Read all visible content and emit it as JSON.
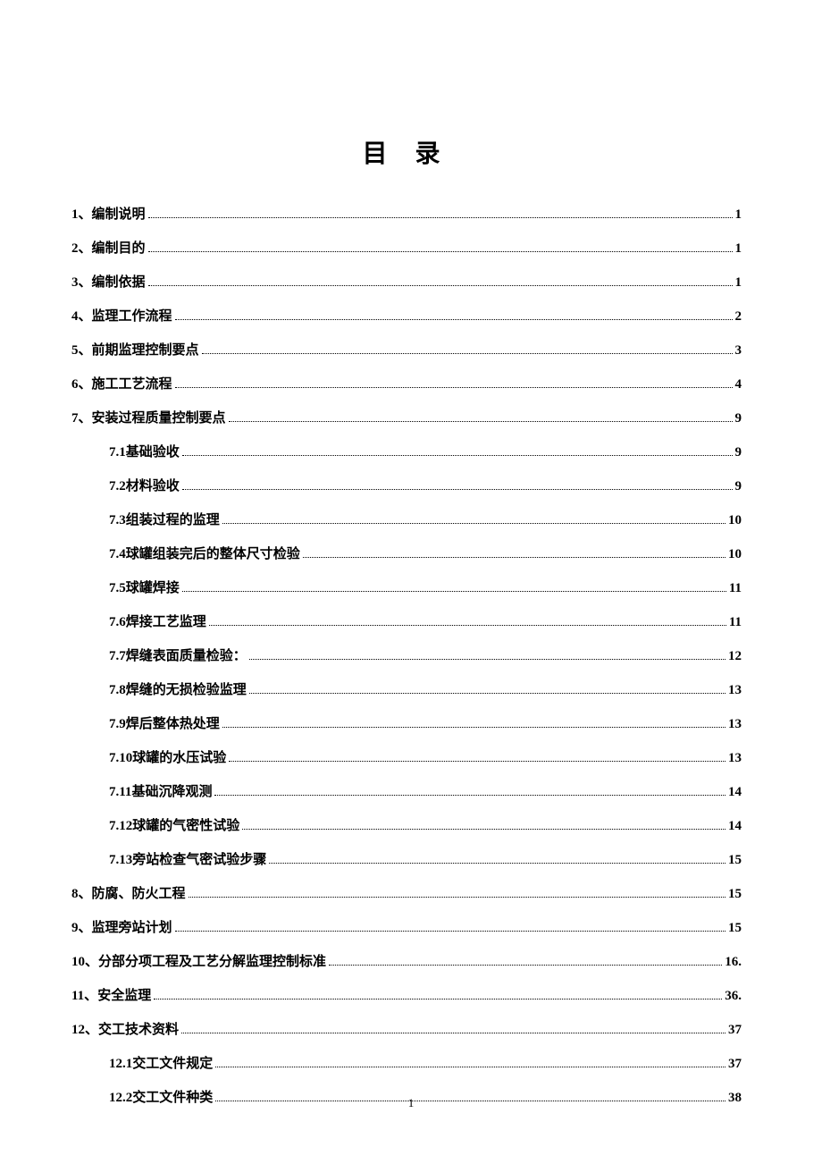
{
  "title": "目 录",
  "entries": [
    {
      "num": "1、",
      "text": "编制说明",
      "page": "1",
      "sub": false
    },
    {
      "num": "2、",
      "text": "编制目的",
      "page": "1",
      "sub": false
    },
    {
      "num": "3、",
      "text": "编制依据",
      "page": "1",
      "sub": false
    },
    {
      "num": "4、",
      "text": "监理工作流程",
      "page": "2",
      "sub": false
    },
    {
      "num": "5、",
      "text": "前期监理控制要点",
      "page": "3",
      "sub": false
    },
    {
      "num": "6、",
      "text": "施工工艺流程",
      "page": "4",
      "sub": false
    },
    {
      "num": "7、",
      "text": "安装过程质量控制要点",
      "page": "9",
      "sub": false
    },
    {
      "num": "7.1 ",
      "text": "基础验收",
      "page": "9",
      "sub": true
    },
    {
      "num": "7.2 ",
      "text": "材料验收",
      "page": "9",
      "sub": true
    },
    {
      "num": "7.3 ",
      "text": "组装过程的监理",
      "page": "10",
      "sub": true
    },
    {
      "num": "7.4 ",
      "text": "球罐组装完后的整体尺寸检验",
      "page": "10",
      "sub": true
    },
    {
      "num": "7.5 ",
      "text": "球罐焊接",
      "page": "11",
      "sub": true
    },
    {
      "num": "7.6 ",
      "text": "焊接工艺监理",
      "page": "11",
      "sub": true
    },
    {
      "num": "7.7 ",
      "text": "焊缝表面质量检验：",
      "page": "12",
      "sub": true
    },
    {
      "num": "7.8 ",
      "text": "焊缝的无损检验监理",
      "page": "13",
      "sub": true
    },
    {
      "num": "7.9 ",
      "text": "焊后整体热处理",
      "page": "13",
      "sub": true
    },
    {
      "num": "7.10 ",
      "text": "球罐的水压试验",
      "page": "13",
      "sub": true
    },
    {
      "num": "7.11 ",
      "text": "基础沉降观测",
      "page": "14",
      "sub": true
    },
    {
      "num": "7.12 ",
      "text": "球罐的气密性试验",
      "page": "14",
      "sub": true
    },
    {
      "num": "7.13 ",
      "text": "旁站检查气密试验步骤",
      "page": "15",
      "sub": true
    },
    {
      "num": "8、",
      "text": "防腐、防火工程",
      "page": "15",
      "sub": false
    },
    {
      "num": "9、",
      "text": "监理旁站计划",
      "page": "15",
      "sub": false
    },
    {
      "num": "10、",
      "text": "分部分项工程及工艺分解监理控制标准",
      "page": "16.",
      "sub": false
    },
    {
      "num": "11、",
      "text": "安全监理",
      "page": "36.",
      "sub": false
    },
    {
      "num": "12、",
      "text": "交工技术资料",
      "page": "37",
      "sub": false
    },
    {
      "num": "12.1 ",
      "text": "交工文件规定",
      "page": "37",
      "sub": true
    },
    {
      "num": "12.2 ",
      "text": "交工文件种类",
      "page": "38",
      "sub": true
    }
  ],
  "footer_page": "1"
}
